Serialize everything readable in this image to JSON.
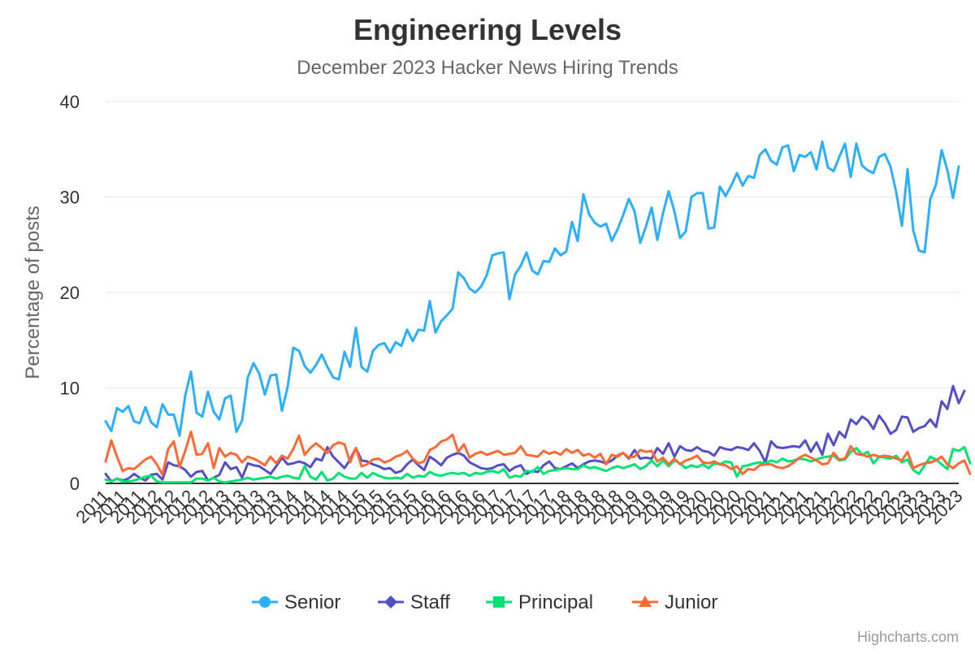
{
  "chart_data": {
    "type": "line",
    "title": "Engineering Levels",
    "subtitle": "December 2023 Hacker News Hiring Trends",
    "ylabel": "Percentage of posts",
    "xlabel": "",
    "ylim": [
      0,
      40
    ],
    "yticks": [
      0,
      10,
      20,
      30,
      40
    ],
    "grid": true,
    "legend": "bottom-center",
    "x_tick_labels": [
      "2011",
      "2011",
      "2011",
      "2012",
      "2012",
      "2012",
      "2012",
      "2013",
      "2013",
      "2013",
      "2013",
      "2014",
      "2014",
      "2014",
      "2014",
      "2015",
      "2015",
      "2015",
      "2015",
      "2016",
      "2016",
      "2016",
      "2016",
      "2017",
      "2017",
      "2017",
      "2017",
      "2018",
      "2018",
      "2018",
      "2018",
      "2019",
      "2019",
      "2019",
      "2019",
      "2020",
      "2020",
      "2020",
      "2020",
      "2021",
      "2021",
      "2021",
      "2021",
      "2022",
      "2022",
      "2022",
      "2022",
      "2023",
      "2023",
      "2023",
      "2023"
    ],
    "series": [
      {
        "name": "Senior",
        "color": "#2caffe",
        "marker": "circle",
        "values": [
          6.5,
          5.5,
          7.9,
          7.5,
          8.1,
          6.5,
          6.3,
          8.0,
          6.4,
          5.9,
          8.3,
          7.2,
          7.2,
          5.0,
          9.2,
          11.7,
          7.4,
          7.0,
          9.6,
          7.5,
          6.7,
          8.9,
          9.2,
          5.4,
          6.6,
          11.1,
          12.6,
          11.5,
          9.3,
          11.3,
          11.4,
          7.6,
          10.1,
          14.2,
          13.9,
          12.3,
          11.6,
          12.4,
          13.5,
          12.2,
          11.1,
          10.9,
          13.8,
          12.2,
          16.3,
          12.2,
          11.7,
          13.9,
          14.5,
          14.7,
          13.7,
          14.8,
          14.4,
          16.1,
          14.9,
          16.1,
          16.0,
          19.1,
          15.8,
          17.0,
          17.6,
          18.3,
          22.1,
          21.5,
          20.4,
          20.0,
          20.6,
          21.8,
          23.9,
          24.1,
          24.2,
          19.3,
          21.9,
          22.8,
          24.2,
          22.3,
          21.9,
          23.3,
          23.2,
          24.6,
          23.9,
          24.3,
          27.4,
          25.4,
          30.3,
          28.2,
          27.3,
          26.9,
          27.2,
          25.4,
          26.6,
          28.1,
          29.8,
          28.5,
          25.2,
          26.9,
          28.9,
          25.5,
          28.3,
          30.6,
          28.5,
          25.7,
          26.4,
          30.0,
          30.4,
          30.4,
          26.7,
          26.8,
          31.1,
          30.1,
          31.2,
          32.5,
          31.2,
          32.2,
          32.0,
          34.4,
          35.0,
          33.8,
          33.4,
          35.2,
          35.4,
          32.7,
          34.4,
          34.2,
          34.7,
          32.9,
          35.8,
          33.1,
          32.7,
          34.2,
          35.6,
          32.1,
          35.6,
          33.3,
          32.8,
          32.5,
          34.2,
          34.5,
          33.2,
          30.5,
          27.0,
          32.9,
          26.5,
          24.4,
          24.2,
          29.8,
          31.3,
          34.9,
          32.8,
          29.9,
          33.2
        ]
      },
      {
        "name": "Staff",
        "color": "#544fc5",
        "marker": "diamond",
        "values": [
          1.0,
          0.2,
          0.5,
          0.3,
          0.5,
          1.0,
          0.6,
          0.3,
          0.9,
          1.0,
          0.4,
          2.2,
          1.9,
          1.8,
          1.4,
          0.7,
          1.2,
          1.3,
          0.3,
          0.6,
          0.9,
          2.2,
          1.5,
          1.7,
          0.6,
          2.1,
          1.9,
          1.8,
          1.4,
          1.0,
          1.8,
          2.7,
          2.0,
          2.1,
          2.3,
          2.1,
          1.7,
          2.6,
          2.4,
          3.8,
          2.8,
          2.2,
          1.6,
          2.5,
          3.7,
          2.4,
          2.3,
          2.0,
          1.8,
          1.5,
          1.6,
          1.1,
          1.3,
          2.0,
          2.5,
          1.9,
          1.4,
          2.8,
          2.4,
          1.9,
          2.7,
          3.0,
          3.2,
          2.9,
          2.2,
          1.9,
          1.6,
          1.5,
          1.6,
          1.9,
          2.0,
          1.3,
          1.7,
          1.9,
          1.0,
          1.3,
          1.2,
          1.9,
          2.3,
          1.6,
          1.5,
          1.8,
          2.1,
          1.6,
          2.0,
          2.3,
          2.4,
          2.3,
          2.1,
          2.4,
          2.9,
          3.2,
          2.6,
          3.5,
          2.6,
          2.7,
          2.6,
          3.7,
          3.1,
          4.2,
          2.8,
          3.9,
          3.5,
          3.4,
          3.8,
          3.4,
          3.3,
          2.9,
          3.8,
          3.6,
          3.5,
          3.8,
          3.7,
          3.5,
          4.2,
          3.4,
          2.2,
          4.4,
          3.8,
          3.7,
          3.8,
          3.9,
          3.8,
          4.5,
          3.3,
          4.3,
          3.0,
          5.2,
          4.0,
          5.4,
          4.8,
          6.7,
          6.2,
          7.0,
          6.6,
          5.7,
          7.1,
          6.3,
          5.2,
          5.6,
          7.0,
          6.9,
          5.4,
          5.8,
          6.0,
          6.7,
          5.9,
          8.6,
          7.8,
          10.2,
          8.4,
          9.7
        ]
      },
      {
        "name": "Principal",
        "color": "#00e272",
        "marker": "square",
        "values": [
          0.4,
          0.2,
          0.5,
          0.2,
          0.2,
          0.3,
          0.5,
          0.7,
          0.8,
          0.2,
          0.1,
          0.1,
          0.1,
          0.1,
          0.1,
          0.1,
          0.5,
          0.5,
          0.3,
          0.6,
          0.2,
          0.1,
          0.2,
          0.3,
          0.4,
          0.6,
          0.4,
          0.5,
          0.6,
          0.7,
          0.5,
          0.7,
          0.8,
          0.6,
          0.5,
          1.8,
          0.7,
          0.4,
          1.2,
          0.3,
          0.5,
          1.1,
          0.7,
          0.5,
          0.5,
          1.1,
          0.6,
          1.1,
          0.8,
          0.6,
          0.5,
          0.6,
          0.5,
          1.0,
          0.6,
          0.8,
          0.7,
          1.2,
          0.9,
          0.8,
          1.0,
          1.1,
          1.0,
          1.1,
          0.8,
          1.1,
          1.0,
          1.2,
          1.3,
          1.1,
          1.5,
          0.6,
          0.8,
          0.7,
          1.3,
          1.2,
          1.7,
          1.0,
          1.3,
          1.4,
          1.5,
          1.6,
          1.5,
          1.5,
          1.9,
          1.6,
          1.7,
          1.5,
          1.3,
          1.6,
          1.8,
          1.6,
          1.8,
          2.0,
          1.5,
          1.8,
          2.4,
          1.8,
          2.4,
          1.8,
          2.4,
          2.1,
          1.6,
          1.9,
          1.7,
          2.0,
          1.6,
          2.1,
          2.0,
          2.3,
          2.2,
          0.7,
          1.8,
          1.9,
          2.1,
          2.2,
          2.1,
          2.4,
          2.2,
          2.6,
          2.3,
          2.4,
          2.6,
          2.5,
          2.3,
          2.5,
          2.7,
          2.8,
          2.9,
          2.4,
          2.5,
          3.3,
          3.7,
          3.0,
          3.3,
          2.1,
          2.8,
          2.7,
          2.6,
          2.9,
          2.2,
          2.5,
          1.4,
          1.0,
          1.9,
          2.8,
          2.5,
          2.0,
          1.5,
          3.6,
          3.4,
          3.8,
          2.1
        ]
      },
      {
        "name": "Junior",
        "color": "#fe6a35",
        "marker": "triangle",
        "values": [
          2.3,
          4.5,
          2.8,
          1.3,
          1.6,
          1.5,
          2.0,
          2.5,
          2.8,
          2.0,
          0.9,
          3.6,
          4.4,
          1.7,
          3.4,
          5.4,
          3.0,
          3.1,
          4.2,
          1.6,
          3.7,
          2.8,
          3.2,
          3.0,
          2.2,
          2.8,
          2.6,
          2.3,
          1.9,
          2.8,
          2.1,
          2.9,
          2.6,
          3.6,
          5.0,
          3.0,
          3.7,
          4.2,
          3.7,
          3.2,
          4.0,
          4.3,
          4.1,
          2.2,
          3.7,
          1.8,
          2.0,
          2.5,
          2.6,
          2.2,
          2.4,
          2.8,
          3.0,
          3.4,
          2.6,
          2.1,
          2.3,
          3.5,
          3.8,
          4.4,
          4.6,
          5.1,
          3.3,
          4.1,
          2.7,
          3.1,
          3.3,
          3.0,
          3.2,
          3.4,
          3.0,
          3.1,
          3.2,
          3.9,
          3.0,
          2.9,
          2.8,
          3.4,
          3.1,
          3.3,
          3.0,
          3.6,
          3.2,
          3.5,
          2.9,
          3.1,
          2.7,
          3.1,
          2.0,
          3.0,
          2.8,
          3.2,
          2.7,
          2.8,
          3.5,
          3.3,
          3.4,
          2.3,
          2.7,
          2.0,
          2.6,
          2.0,
          2.4,
          2.6,
          2.9,
          2.2,
          2.1,
          2.3,
          2.0,
          1.9,
          1.5,
          1.8,
          1.0,
          1.5,
          1.4,
          1.9,
          2.0,
          2.0,
          1.7,
          1.6,
          1.8,
          2.2,
          2.7,
          3.0,
          2.7,
          2.4,
          2.0,
          2.1,
          3.2,
          2.5,
          2.6,
          3.9,
          3.1,
          3.0,
          2.8,
          3.0,
          2.8,
          2.9,
          2.8,
          2.6,
          2.4,
          3.3,
          1.6,
          1.9,
          2.1,
          2.2,
          2.4,
          2.8,
          2.0,
          1.6,
          2.1,
          2.4,
          1.0
        ]
      }
    ]
  },
  "credits": "Highcharts.com"
}
